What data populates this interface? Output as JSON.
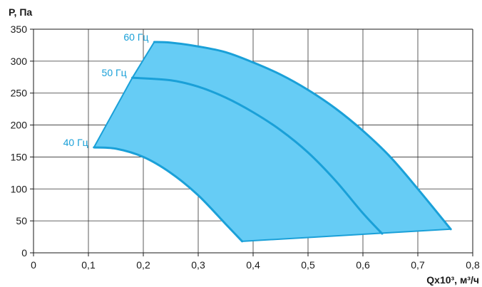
{
  "chart_data": {
    "type": "area",
    "title": "",
    "xlabel": "Qx10³, м³/ч",
    "ylabel": "P, Па",
    "xlim": [
      0,
      0.8
    ],
    "ylim": [
      0,
      350
    ],
    "x_ticks": [
      "0",
      "0,1",
      "0,2",
      "0,3",
      "0,4",
      "0,5",
      "0,6",
      "0,7",
      "0,8"
    ],
    "y_ticks": [
      "0",
      "50",
      "100",
      "150",
      "200",
      "250",
      "300",
      "350"
    ],
    "grid": true,
    "colors": {
      "fill": "#66ccf5",
      "line": "#1aa0d8",
      "grid": "#333333"
    },
    "series": [
      {
        "name": "40 Гц",
        "x": [
          0.11,
          0.15,
          0.2,
          0.25,
          0.3,
          0.35,
          0.38
        ],
        "y": [
          165,
          163,
          150,
          125,
          90,
          45,
          18
        ]
      },
      {
        "name": "50 Гц",
        "x": [
          0.18,
          0.25,
          0.3,
          0.35,
          0.4,
          0.45,
          0.5,
          0.55,
          0.6,
          0.635
        ],
        "y": [
          274,
          270,
          260,
          243,
          220,
          192,
          157,
          113,
          62,
          30
        ]
      },
      {
        "name": "60 Гц",
        "x": [
          0.22,
          0.25,
          0.3,
          0.35,
          0.4,
          0.45,
          0.5,
          0.55,
          0.6,
          0.65,
          0.7,
          0.76
        ],
        "y": [
          330,
          329,
          323,
          314,
          298,
          279,
          255,
          226,
          191,
          150,
          100,
          37
        ]
      }
    ],
    "upper_boundary": {
      "x": [
        0.11,
        0.18,
        0.22
      ],
      "y": [
        165,
        274,
        330
      ]
    },
    "lower_boundary": {
      "x": [
        0.38,
        0.76
      ],
      "y": [
        18,
        37
      ]
    }
  }
}
